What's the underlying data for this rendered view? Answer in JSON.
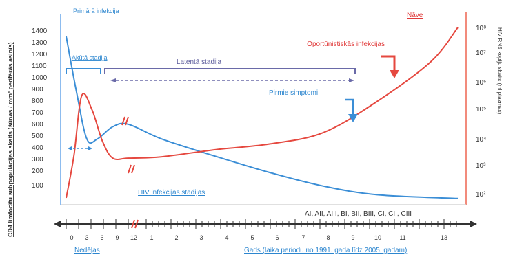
{
  "chart_data": {
    "type": "line",
    "title": "Primārā infekcija",
    "ylabel_left": "CD4 limfocītu subpopulācijas skaits (šūnas / mm³ perifērās asinīs)",
    "ylabel_right": "HIV RNS kopiju skaits (ml plazmas)",
    "left_ticks": [
      1400,
      1300,
      1200,
      1100,
      1000,
      900,
      800,
      700,
      600,
      500,
      400,
      300,
      200,
      100
    ],
    "right_ticks": [
      "10⁸",
      "10⁷",
      "10⁶",
      "10⁵",
      "10⁴",
      "10³",
      "10²"
    ],
    "x_weeks_ticks": [
      "0",
      "3",
      "6",
      "9",
      "12"
    ],
    "x_weeks_label": "Nedēļas",
    "x_years_ticks": [
      "1",
      "2",
      "3",
      "4",
      "5",
      "6",
      "7",
      "8",
      "9",
      "10",
      "11",
      "13"
    ],
    "x_years_label": "Gads (laika periodu no 1991. gada līdz 2005. gadam)",
    "stage_codes": "AI, AII, AIII, BI, BII, BIII, CI, CII, CIII",
    "annotations": {
      "primary": "Primārā infekcija",
      "acute": "Akūtā stadija",
      "latent": "Latentā stadija",
      "first_symptoms": "Pirmie simptomi",
      "opportunistic": "Oportūnistiskās infekcijas",
      "death": "Nāve",
      "hiv_stages": "HIV infekcijas stadijas"
    },
    "series": [
      {
        "name": "CD4",
        "color": "#3b8ed6",
        "points": [
          [
            0,
            1350
          ],
          [
            2,
            900
          ],
          [
            4,
            520
          ],
          [
            6,
            520
          ],
          [
            9,
            620
          ],
          [
            12,
            640
          ],
          [
            24,
            520
          ],
          [
            48,
            380
          ],
          [
            72,
            250
          ],
          [
            96,
            140
          ],
          [
            120,
            70
          ],
          [
            156,
            40
          ]
        ]
      },
      {
        "name": "HIV RNS",
        "color": "#e5483f",
        "points": [
          [
            0,
            2.0
          ],
          [
            1.5,
            3.5
          ],
          [
            3,
            5.6
          ],
          [
            5,
            5.1
          ],
          [
            7,
            4.0
          ],
          [
            9,
            3.4
          ],
          [
            12,
            3.4
          ],
          [
            24,
            3.45
          ],
          [
            48,
            3.7
          ],
          [
            72,
            3.9
          ],
          [
            96,
            4.3
          ],
          [
            120,
            5.4
          ],
          [
            144,
            6.8
          ],
          [
            156,
            8.0
          ]
        ]
      }
    ]
  }
}
